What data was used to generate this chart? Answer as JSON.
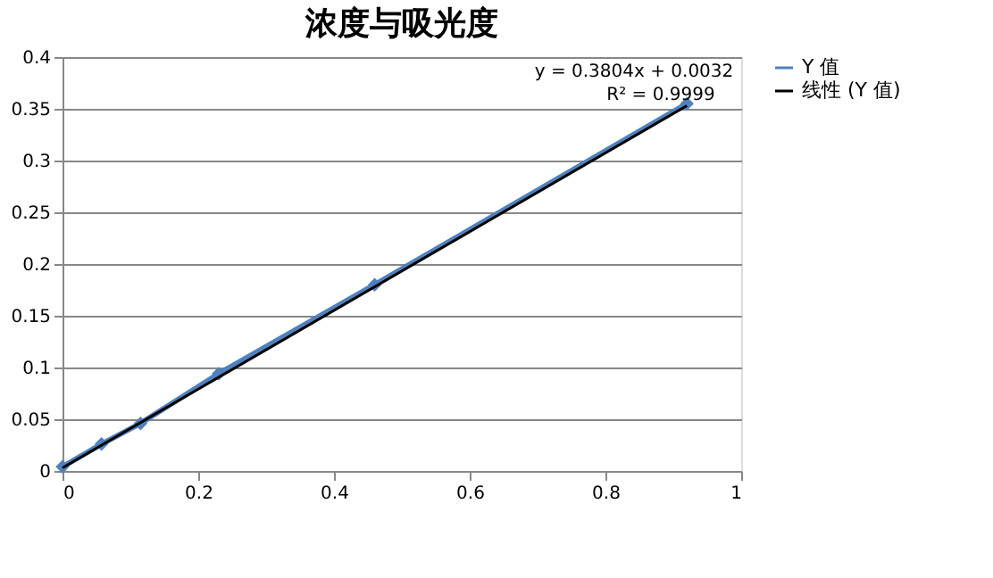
{
  "chart_data": {
    "type": "line",
    "title": "浓度与吸光度",
    "xlim": [
      0,
      1
    ],
    "xticks": [
      0,
      0.2,
      0.4,
      0.6,
      0.8,
      1
    ],
    "ylim": [
      0,
      0.4
    ],
    "yticks": [
      0,
      0.05,
      0.1,
      0.15,
      0.2,
      0.25,
      0.3,
      0.35,
      0.4
    ],
    "grid": "y",
    "legend": "right",
    "marker": "diamond",
    "x": [
      0,
      0.0575,
      0.115,
      0.23,
      0.46,
      0.92
    ],
    "series": [
      {
        "name": "Y 值",
        "color": "#4f81bd",
        "values": [
          0.004,
          0.026,
          0.046,
          0.094,
          0.18,
          0.355
        ]
      },
      {
        "name": "线性 (Y 值)",
        "color": "#000000",
        "marker": "none",
        "x": [
          0,
          0.92
        ],
        "values": [
          0.003,
          0.353
        ]
      }
    ],
    "annotations": [
      "y = 0.3804x + 0.0032",
      "R² = 0.9999"
    ]
  }
}
